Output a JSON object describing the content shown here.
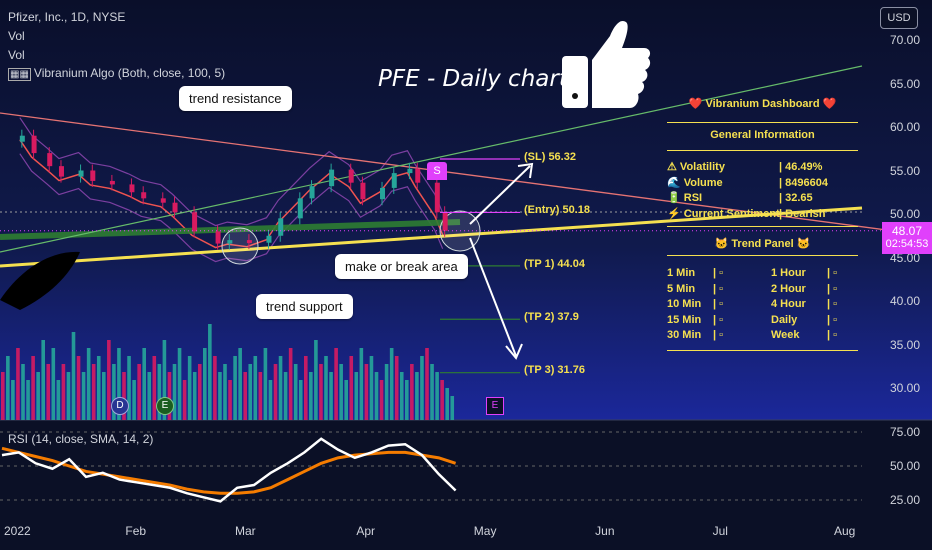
{
  "header": {
    "symbol_line": "Pfizer, Inc., 1D, NYSE",
    "vol_1": "Vol",
    "vol_2": "Vol",
    "indicator": "Vibranium Algo (Both, close, 100, 5)"
  },
  "title": "PFE - Daily chart",
  "currency_button": "USD",
  "callouts": {
    "trend_resistance": "trend resistance",
    "trend_support": "trend support",
    "make_or_break": "make or break area"
  },
  "levels": [
    {
      "label": "(SL) 56.32",
      "value": 56.32
    },
    {
      "label": "(Entry) 50.18",
      "value": 50.18
    },
    {
      "label": "(TP 1) 44.04",
      "value": 44.04
    },
    {
      "label": "(TP 2) 37.9",
      "value": 37.9
    },
    {
      "label": "(TP 3) 31.76",
      "value": 31.76
    }
  ],
  "dashboard": {
    "title": "❤️ Vibranium Dashboard ❤️",
    "general": "General Information",
    "rows": [
      {
        "k": "⚠ Volatility",
        "v": "| 46.49%"
      },
      {
        "k": "🌊 Volume",
        "v": "| 8496604"
      },
      {
        "k": "🔋 RSI",
        "v": "| 32.65"
      },
      {
        "k": "⚡ Current Sentiment",
        "v": "| Bearish"
      }
    ],
    "trend_panel": "🐱 Trend Panel 🐱",
    "trend_rows": [
      {
        "a": "1 Min",
        "b": "1 Hour"
      },
      {
        "a": "5 Min",
        "b": "2 Hour"
      },
      {
        "a": "10 Min",
        "b": "4 Hour"
      },
      {
        "a": "15 Min",
        "b": "Daily"
      },
      {
        "a": "30 Min",
        "b": "Week"
      }
    ]
  },
  "price_tag": {
    "price": "48.07",
    "countdown": "02:54:53"
  },
  "markers": {
    "s": "S",
    "d": "D",
    "e": "E",
    "e2": "E"
  },
  "colors": {
    "up": "#26a69a",
    "down": "#d81b60",
    "accent": "#e040fb",
    "level": "#f5e050"
  },
  "chart_data": {
    "type": "line",
    "title": "",
    "price_axis": {
      "ticks": [
        70,
        65,
        60,
        55,
        50,
        45,
        40,
        35,
        30
      ],
      "labels": [
        "70.00",
        "65.00",
        "60.00",
        "55.00",
        "50.00",
        "45.00",
        "40.00",
        "35.00",
        "30.00"
      ]
    },
    "rsi_axis": {
      "ticks": [
        75,
        50,
        25
      ],
      "labels": [
        "75.00",
        "50.00",
        "25.00"
      ]
    },
    "x_ticks": [
      "2022",
      "Feb",
      "Mar",
      "Apr",
      "May",
      "Jun",
      "Jul",
      "Aug"
    ],
    "x_dates": [
      "2022-01-01",
      "2022-02-01",
      "2022-03-01",
      "2022-04-01",
      "2022-05-01",
      "2022-06-01",
      "2022-07-01",
      "2022-08-01"
    ],
    "series": [
      {
        "name": "Pfizer, Inc., 1D, NYSE",
        "dates": [
          "2022-01-03",
          "2022-01-06",
          "2022-01-10",
          "2022-01-13",
          "2022-01-18",
          "2022-01-21",
          "2022-01-26",
          "2022-01-31",
          "2022-02-03",
          "2022-02-08",
          "2022-02-11",
          "2022-02-16",
          "2022-02-22",
          "2022-02-25",
          "2022-03-02",
          "2022-03-07",
          "2022-03-10",
          "2022-03-15",
          "2022-03-18",
          "2022-03-23",
          "2022-03-28",
          "2022-03-31",
          "2022-04-05",
          "2022-04-08",
          "2022-04-12",
          "2022-04-14",
          "2022-04-19",
          "2022-04-21"
        ],
        "values": [
          59.0,
          57.0,
          55.5,
          54.3,
          55.0,
          53.8,
          53.4,
          52.5,
          51.8,
          51.3,
          50.2,
          48.0,
          46.6,
          47.0,
          46.7,
          47.5,
          49.5,
          51.8,
          53.2,
          55.1,
          53.6,
          51.7,
          53.0,
          54.7,
          55.2,
          53.6,
          50.2,
          48.07
        ]
      }
    ],
    "rsi_series": {
      "name": "RSI (14, close, SMA, 14, 2)",
      "values": [
        58,
        60,
        52,
        48,
        55,
        42,
        45,
        40,
        38,
        36,
        34,
        30,
        27,
        24,
        34,
        36,
        45,
        52,
        60,
        70,
        62,
        56,
        60,
        65,
        66,
        58,
        44,
        32
      ],
      "sma": [
        63,
        60,
        57,
        54,
        50,
        46,
        44,
        42,
        40,
        38,
        36,
        33,
        31,
        30,
        30,
        31,
        34,
        40,
        46,
        52,
        56,
        58,
        59,
        60,
        60,
        58,
        56,
        52
      ]
    },
    "volume_heights": [
      6,
      8,
      5,
      9,
      7,
      5,
      8,
      6,
      10,
      7,
      9,
      5,
      7,
      6,
      11,
      8,
      6,
      9,
      7,
      8,
      6,
      10,
      7,
      9,
      6,
      8,
      5,
      7,
      9,
      6,
      8,
      7,
      10,
      6,
      7,
      9,
      5,
      8,
      6,
      7,
      9,
      12,
      8,
      6,
      7,
      5,
      8,
      9,
      6,
      7,
      8,
      6,
      9,
      5,
      7,
      8,
      6,
      9,
      7,
      5,
      8,
      6,
      10,
      7,
      8,
      6,
      9,
      7,
      5,
      8,
      6,
      9,
      7,
      8,
      6,
      5,
      7,
      9,
      8,
      6,
      5,
      7,
      6,
      8,
      9,
      7,
      6,
      5,
      4,
      3
    ]
  }
}
